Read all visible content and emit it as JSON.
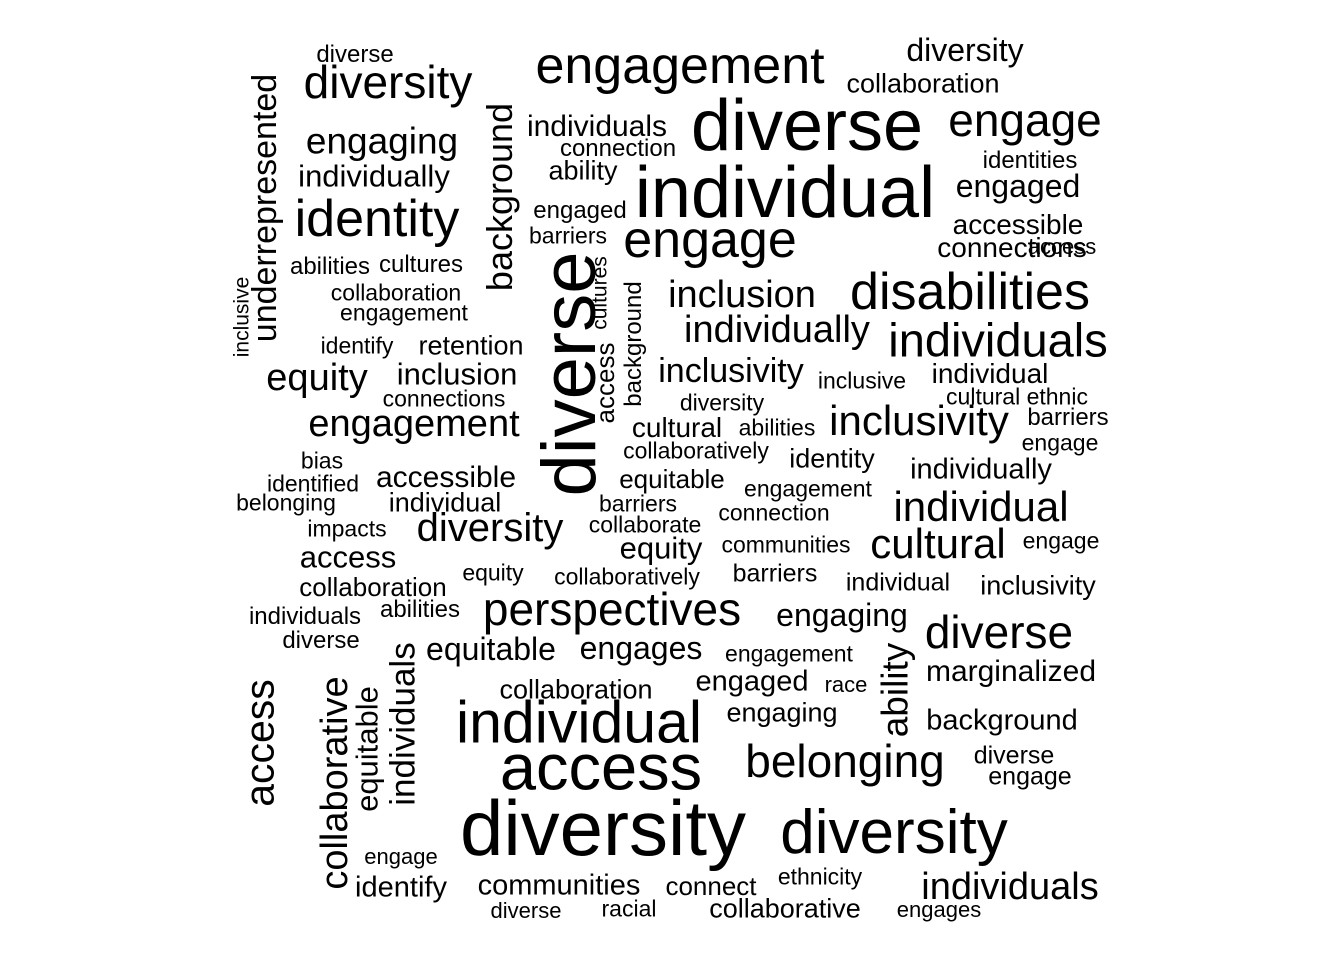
{
  "cloud": {
    "text_color": "#000000",
    "background": "#ffffff",
    "words": [
      {
        "text": "diverse",
        "size": 7
      },
      {
        "text": "diversity",
        "size": 14
      },
      {
        "text": "engagement",
        "size": 24
      },
      {
        "text": "diversity",
        "size": 15
      },
      {
        "text": "collaboration",
        "size": 9
      },
      {
        "text": "diverse",
        "size": 38
      },
      {
        "text": "engage",
        "size": 19
      },
      {
        "text": "engaging",
        "size": 15
      },
      {
        "text": "individuals",
        "size": 11
      },
      {
        "text": "connection",
        "size": 7
      },
      {
        "text": "underrepresented",
        "size": 14
      },
      {
        "text": "background",
        "size": 13
      },
      {
        "text": "individual",
        "size": 40
      },
      {
        "text": "identities",
        "size": 7
      },
      {
        "text": "ability",
        "size": 9
      },
      {
        "text": "individually",
        "size": 11
      },
      {
        "text": "engaged",
        "size": 11
      },
      {
        "text": "identity",
        "size": 24
      },
      {
        "text": "engaged",
        "size": 8
      },
      {
        "text": "barriers",
        "size": 7
      },
      {
        "text": "engage",
        "size": 26
      },
      {
        "text": "accessible",
        "size": 10
      },
      {
        "text": "connections",
        "size": 10
      },
      {
        "text": "access",
        "size": 5
      },
      {
        "text": "abilities",
        "size": 7
      },
      {
        "text": "cultures",
        "size": 8
      },
      {
        "text": "cultures",
        "size": 6
      },
      {
        "text": "inclusive",
        "size": 5
      },
      {
        "text": "collaboration",
        "size": 7
      },
      {
        "text": "engagement",
        "size": 8
      },
      {
        "text": "diverse",
        "size": 48
      },
      {
        "text": "background",
        "size": 6
      },
      {
        "text": "inclusion",
        "size": 15
      },
      {
        "text": "disabilities",
        "size": 26
      },
      {
        "text": "individually",
        "size": 15
      },
      {
        "text": "individuals",
        "size": 23
      },
      {
        "text": "identify",
        "size": 7
      },
      {
        "text": "retention",
        "size": 10
      },
      {
        "text": "access",
        "size": 11
      },
      {
        "text": "equity",
        "size": 14
      },
      {
        "text": "inclusion",
        "size": 11
      },
      {
        "text": "inclusivity",
        "size": 13
      },
      {
        "text": "inclusive",
        "size": 7
      },
      {
        "text": "individual",
        "size": 10
      },
      {
        "text": "connections",
        "size": 7
      },
      {
        "text": "diversity",
        "size": 7
      },
      {
        "text": "cultural ethnic",
        "size": 7
      },
      {
        "text": "barriers",
        "size": 7
      },
      {
        "text": "engagement",
        "size": 16
      },
      {
        "text": "cultural",
        "size": 11
      },
      {
        "text": "abilities",
        "size": 7
      },
      {
        "text": "inclusivity",
        "size": 17
      },
      {
        "text": "engage",
        "size": 6
      },
      {
        "text": "collaboratively",
        "size": 7
      },
      {
        "text": "bias",
        "size": 6
      },
      {
        "text": "identity",
        "size": 8
      },
      {
        "text": "identified",
        "size": 7
      },
      {
        "text": "accessible",
        "size": 11
      },
      {
        "text": "equitable",
        "size": 9
      },
      {
        "text": "engagement",
        "size": 7
      },
      {
        "text": "individually",
        "size": 10
      },
      {
        "text": "belonging",
        "size": 7
      },
      {
        "text": "individual",
        "size": 9
      },
      {
        "text": "barriers",
        "size": 7
      },
      {
        "text": "individual",
        "size": 18
      },
      {
        "text": "impacts",
        "size": 7
      },
      {
        "text": "diversity",
        "size": 16
      },
      {
        "text": "collaborate",
        "size": 7
      },
      {
        "text": "connection",
        "size": 7
      },
      {
        "text": "equity",
        "size": 11
      },
      {
        "text": "communities",
        "size": 7
      },
      {
        "text": "cultural",
        "size": 18
      },
      {
        "text": "engage",
        "size": 6
      },
      {
        "text": "access",
        "size": 11
      },
      {
        "text": "equity",
        "size": 7
      },
      {
        "text": "collaboratively",
        "size": 7
      },
      {
        "text": "barriers",
        "size": 8
      },
      {
        "text": "collaboration",
        "size": 9
      },
      {
        "text": "individual",
        "size": 8
      },
      {
        "text": "inclusivity",
        "size": 9
      },
      {
        "text": "individuals",
        "size": 7
      },
      {
        "text": "abilities",
        "size": 8
      },
      {
        "text": "perspectives",
        "size": 20
      },
      {
        "text": "engaging",
        "size": 11
      },
      {
        "text": "diverse",
        "size": 18
      },
      {
        "text": "diverse",
        "size": 8
      },
      {
        "text": "equitable",
        "size": 12
      },
      {
        "text": "engages",
        "size": 12
      },
      {
        "text": "engagement",
        "size": 7
      },
      {
        "text": "ability",
        "size": 14
      },
      {
        "text": "marginalized",
        "size": 10
      },
      {
        "text": "collaborative",
        "size": 16
      },
      {
        "text": "individuals",
        "size": 14
      },
      {
        "text": "access",
        "size": 18
      },
      {
        "text": "equitable",
        "size": 11
      },
      {
        "text": "collaboration",
        "size": 10
      },
      {
        "text": "engaged",
        "size": 10
      },
      {
        "text": "race",
        "size": 6
      },
      {
        "text": "individual",
        "size": 28
      },
      {
        "text": "engaging",
        "size": 9
      },
      {
        "text": "background",
        "size": 9
      },
      {
        "text": "access",
        "size": 31
      },
      {
        "text": "belonging",
        "size": 21
      },
      {
        "text": "diverse",
        "size": 8
      },
      {
        "text": "engage",
        "size": 8
      },
      {
        "text": "diversity",
        "size": 53
      },
      {
        "text": "diversity",
        "size": 32
      },
      {
        "text": "engage",
        "size": 6
      },
      {
        "text": "ethnicity",
        "size": 7
      },
      {
        "text": "identify",
        "size": 10
      },
      {
        "text": "communities",
        "size": 10
      },
      {
        "text": "connect",
        "size": 8
      },
      {
        "text": "individuals",
        "size": 14
      },
      {
        "text": "diverse",
        "size": 6
      },
      {
        "text": "racial",
        "size": 6
      },
      {
        "text": "collaborative",
        "size": 9
      },
      {
        "text": "engages",
        "size": 6
      }
    ]
  }
}
